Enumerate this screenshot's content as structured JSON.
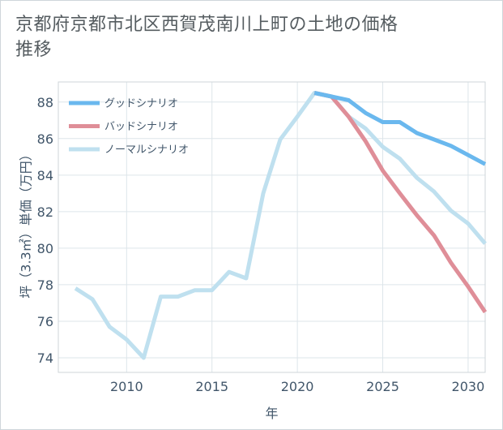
{
  "title": "京都府京都市北区西賀茂南川上町の土地の価格推移",
  "chart_data": {
    "type": "line",
    "title": "京都府京都市北区西賀茂南川上町の土地の価格推移",
    "xlabel": "年",
    "ylabel": "坪（3.3㎡）単価（万円）",
    "xlim": [
      2006,
      2031
    ],
    "ylim": [
      73.2,
      89.1
    ],
    "xticks": [
      2010,
      2015,
      2020,
      2025,
      2030
    ],
    "yticks": [
      74,
      76,
      78,
      80,
      82,
      84,
      86,
      88
    ],
    "grid": true,
    "legend_position": "top-left",
    "series": [
      {
        "name": "グッドシナリオ",
        "color": "#6ab8ee",
        "points": [
          [
            2021,
            88.5
          ],
          [
            2022,
            88.3
          ],
          [
            2023,
            88.1
          ],
          [
            2024,
            87.4
          ],
          [
            2025,
            86.9
          ],
          [
            2026,
            86.9
          ],
          [
            2027,
            86.3
          ],
          [
            2028,
            85.95
          ],
          [
            2029,
            85.6
          ],
          [
            2030,
            85.1
          ],
          [
            2031,
            84.6
          ]
        ]
      },
      {
        "name": "バッドシナリオ",
        "color": "#df8e98",
        "points": [
          [
            2021,
            88.5
          ],
          [
            2022,
            88.3
          ],
          [
            2023,
            87.2
          ],
          [
            2024,
            85.85
          ],
          [
            2025,
            84.25
          ],
          [
            2026,
            83.0
          ],
          [
            2027,
            81.8
          ],
          [
            2028,
            80.7
          ],
          [
            2029,
            79.2
          ],
          [
            2030,
            77.9
          ],
          [
            2031,
            76.5
          ]
        ]
      },
      {
        "name": "ノーマルシナリオ",
        "color": "#bfe0ef",
        "points": [
          [
            2007,
            77.8
          ],
          [
            2008,
            77.2
          ],
          [
            2009,
            75.7
          ],
          [
            2010,
            75.0
          ],
          [
            2011,
            74.0
          ],
          [
            2012,
            77.35
          ],
          [
            2013,
            77.35
          ],
          [
            2014,
            77.7
          ],
          [
            2015,
            77.7
          ],
          [
            2016,
            78.7
          ],
          [
            2017,
            78.35
          ],
          [
            2018,
            83.0
          ],
          [
            2019,
            85.95
          ],
          [
            2020,
            87.2
          ],
          [
            2021,
            88.5
          ],
          [
            2022,
            88.3
          ],
          [
            2023,
            87.2
          ],
          [
            2024,
            86.55
          ],
          [
            2025,
            85.55
          ],
          [
            2026,
            84.9
          ],
          [
            2027,
            83.85
          ],
          [
            2028,
            83.1
          ],
          [
            2029,
            82.05
          ],
          [
            2030,
            81.35
          ],
          [
            2031,
            80.25
          ]
        ]
      }
    ]
  }
}
